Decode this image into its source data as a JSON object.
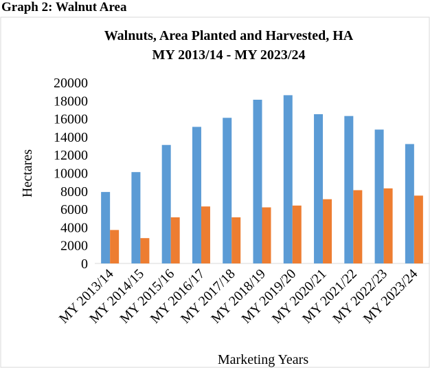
{
  "header": {
    "title": "Graph 2: Walnut Area"
  },
  "chart_data": {
    "type": "bar",
    "title": [
      "Walnuts, Area Planted and Harvested, HA",
      "MY 2013/14 -  MY 2023/24"
    ],
    "x_label": "Marketing Years",
    "y_label": "Hectares",
    "categories": [
      "MY 2013/14",
      "MY 2014/15",
      "MY 2015/16",
      "MY 2016/17",
      "MY 2017/18",
      "MY 2018/19",
      "MY 2019/20",
      "MY 2020/21",
      "MY 2021/22",
      "MY 2022/23",
      "MY 2023/24"
    ],
    "series": [
      {
        "color": "#5b9bd5",
        "values": [
          7900,
          10100,
          13100,
          15100,
          16100,
          18100,
          18600,
          16500,
          16300,
          14800,
          13200
        ]
      },
      {
        "color": "#ed7d31",
        "values": [
          3700,
          2800,
          5100,
          6300,
          5100,
          6200,
          6400,
          7100,
          8100,
          8300,
          7500
        ]
      }
    ],
    "ylim": [
      0,
      20000
    ],
    "yticks": [
      0,
      2000,
      4000,
      6000,
      8000,
      10000,
      12000,
      14000,
      16000,
      18000,
      20000
    ],
    "grid": false
  }
}
